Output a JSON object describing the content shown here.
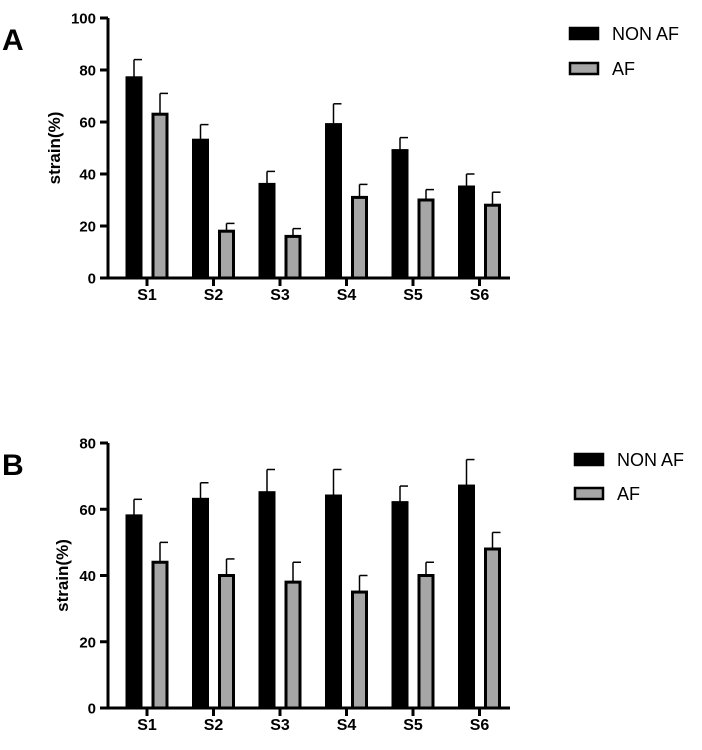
{
  "chart_data": [
    {
      "panel": "A",
      "type": "bar",
      "ylabel": "strain(%)",
      "xlabel": "",
      "ylim": [
        0,
        100
      ],
      "yticks": [
        0,
        20,
        40,
        60,
        80,
        100
      ],
      "categories": [
        "S1",
        "S2",
        "S3",
        "S4",
        "S5",
        "S6"
      ],
      "series": [
        {
          "name": "NON AF",
          "color": "#000000",
          "values": [
            77,
            53,
            36,
            59,
            49,
            35
          ],
          "error": [
            7,
            6,
            5,
            8,
            5,
            5
          ]
        },
        {
          "name": "AF",
          "color": "#a6a6a6",
          "values": [
            63,
            18,
            16,
            31,
            30,
            28
          ],
          "error": [
            8,
            3,
            3,
            5,
            4,
            5
          ]
        }
      ],
      "legend_position": "top-right"
    },
    {
      "panel": "B",
      "type": "bar",
      "ylabel": "strain(%)",
      "xlabel": "",
      "ylim": [
        0,
        80
      ],
      "yticks": [
        0,
        20,
        40,
        60,
        80
      ],
      "categories": [
        "S1",
        "S2",
        "S3",
        "S4",
        "S5",
        "S6"
      ],
      "series": [
        {
          "name": "NON AF",
          "color": "#000000",
          "values": [
            58,
            63,
            65,
            64,
            62,
            67
          ],
          "error": [
            5,
            5,
            7,
            8,
            5,
            8
          ]
        },
        {
          "name": "AF",
          "color": "#a6a6a6",
          "values": [
            44,
            40,
            38,
            35,
            40,
            48
          ],
          "error": [
            6,
            5,
            6,
            5,
            4,
            5
          ]
        }
      ],
      "legend_position": "top-right"
    }
  ]
}
